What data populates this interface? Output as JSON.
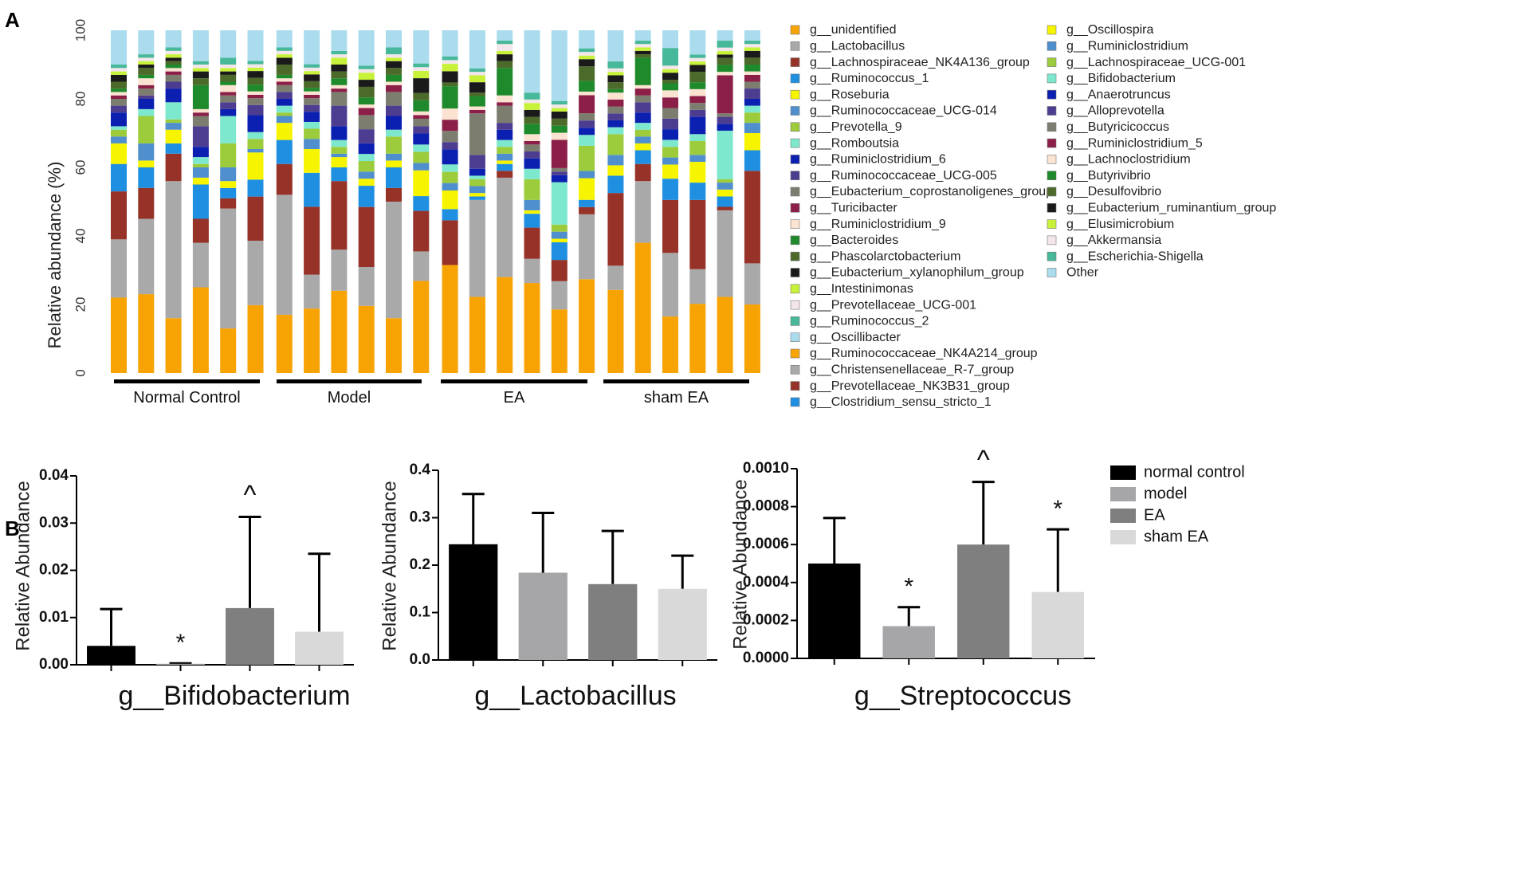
{
  "panel_a": {
    "label": "A",
    "ylabel": "Relative abundance (%)",
    "yticks": [
      "0",
      "20",
      "40",
      "60",
      "80",
      "100"
    ],
    "groups": [
      "Normal Control",
      "Model",
      "EA",
      "sham EA"
    ],
    "bars_per_group": 6,
    "genera": [
      {
        "name": "g__Ruminococcaceae_NK4A214_group",
        "color": "#f8a304"
      },
      {
        "name": "g__Christensenellaceae_R-7_group",
        "color": "#a9a9a9"
      },
      {
        "name": "g__Prevotellaceae_NK3B31_group",
        "color": "#963227"
      },
      {
        "name": "g__Clostridium_sensu_stricto_1",
        "color": "#1f8fe2"
      },
      {
        "name": "g__Oscillospira",
        "color": "#f7f400"
      },
      {
        "name": "g__Ruminiclostridium",
        "color": "#4f8fce"
      },
      {
        "name": "g__Lachnospiraceae_UCG-001",
        "color": "#9ccb3b"
      },
      {
        "name": "g__Bifidobacterium",
        "color": "#7de8cd"
      },
      {
        "name": "g__Anaerotruncus",
        "color": "#0b1fb0"
      },
      {
        "name": "g__Alloprevotella",
        "color": "#4d3d90"
      },
      {
        "name": "g__Butyricicoccus",
        "color": "#7d7d6f"
      },
      {
        "name": "g__Ruminiclostridium_5",
        "color": "#8c1f48"
      },
      {
        "name": "g__Lachnoclostridium",
        "color": "#fbe3d1"
      },
      {
        "name": "g__Butyrivibrio",
        "color": "#1f8a2b"
      },
      {
        "name": "g__Desulfovibrio",
        "color": "#4c6a2a"
      },
      {
        "name": "g__Eubacterium_ruminantium_group",
        "color": "#1a1a1a"
      },
      {
        "name": "g__Elusimicrobium",
        "color": "#c8f23a"
      },
      {
        "name": "g__Akkermansia",
        "color": "#f3e6ea"
      },
      {
        "name": "g__Escherichia-Shigella",
        "color": "#48b89a"
      },
      {
        "name": "Other",
        "color": "#aadcee"
      }
    ],
    "legend_col1": [
      {
        "name": "g__unidentified",
        "color": "#f8a304"
      },
      {
        "name": "g__Lactobacillus",
        "color": "#a9a9a9"
      },
      {
        "name": "g__Lachnospiraceae_NK4A136_group",
        "color": "#963227"
      },
      {
        "name": "g__Ruminococcus_1",
        "color": "#1f8fe2"
      },
      {
        "name": "g__Roseburia",
        "color": "#f7f400"
      },
      {
        "name": "g__Ruminococcaceae_UCG-014",
        "color": "#4f8fce"
      },
      {
        "name": "g__Prevotella_9",
        "color": "#9ccb3b"
      },
      {
        "name": "g__Romboutsia",
        "color": "#7de8cd"
      },
      {
        "name": "g__Ruminiclostridium_6",
        "color": "#0b1fb0"
      },
      {
        "name": "g__Ruminococcaceae_UCG-005",
        "color": "#4d3d90"
      },
      {
        "name": "g__Eubacterium_coprostanoligenes_group",
        "color": "#7d7d6f"
      },
      {
        "name": "g__Turicibacter",
        "color": "#8c1f48"
      },
      {
        "name": "g__Ruminiclostridium_9",
        "color": "#fbe3d1"
      },
      {
        "name": "g__Bacteroides",
        "color": "#1f8a2b"
      },
      {
        "name": "g__Phascolarctobacterium",
        "color": "#4c6a2a"
      },
      {
        "name": "g__Eubacterium_xylanophilum_group",
        "color": "#1a1a1a"
      },
      {
        "name": "g__Intestinimonas",
        "color": "#c8f23a"
      },
      {
        "name": "g__Prevotellaceae_UCG-001",
        "color": "#f3e6ea"
      },
      {
        "name": "g__Ruminococcus_2",
        "color": "#48b89a"
      },
      {
        "name": "g__Oscillibacter",
        "color": "#aadcee"
      },
      {
        "name": "g__Ruminococcaceae_NK4A214_group",
        "color": "#f8a304"
      },
      {
        "name": "g__Christensenellaceae_R-7_group",
        "color": "#a9a9a9"
      },
      {
        "name": "g__Prevotellaceae_NK3B31_group",
        "color": "#963227"
      },
      {
        "name": "g__Clostridium_sensu_stricto_1",
        "color": "#1f8fe2"
      }
    ],
    "legend_col2": [
      {
        "name": "g__Oscillospira",
        "color": "#f7f400"
      },
      {
        "name": "g__Ruminiclostridium",
        "color": "#4f8fce"
      },
      {
        "name": "g__Lachnospiraceae_UCG-001",
        "color": "#9ccb3b"
      },
      {
        "name": "g__Bifidobacterium",
        "color": "#7de8cd"
      },
      {
        "name": "g__Anaerotruncus",
        "color": "#0b1fb0"
      },
      {
        "name": "g__Alloprevotella",
        "color": "#4d3d90"
      },
      {
        "name": "g__Butyricicoccus",
        "color": "#7d7d6f"
      },
      {
        "name": "g__Ruminiclostridium_5",
        "color": "#8c1f48"
      },
      {
        "name": "g__Lachnoclostridium",
        "color": "#fbe3d1"
      },
      {
        "name": "g__Butyrivibrio",
        "color": "#1f8a2b"
      },
      {
        "name": "g__Desulfovibrio",
        "color": "#4c6a2a"
      },
      {
        "name": "g__Eubacterium_ruminantium_group",
        "color": "#1a1a1a"
      },
      {
        "name": "g__Elusimicrobium",
        "color": "#c8f23a"
      },
      {
        "name": "g__Akkermansia",
        "color": "#f3e6ea"
      },
      {
        "name": "g__Escherichia-Shigella",
        "color": "#48b89a"
      },
      {
        "name": "Other",
        "color": "#aadcee"
      }
    ]
  },
  "panel_b": {
    "label": "B",
    "legend": [
      {
        "name": "normal control",
        "color": "#000000"
      },
      {
        "name": "model",
        "color": "#a6a6a9"
      },
      {
        "name": "EA",
        "color": "#7f7f7f"
      },
      {
        "name": "sham EA",
        "color": "#d9d9d9"
      }
    ]
  },
  "chart_data": [
    {
      "type": "bar",
      "stacked": true,
      "title": "",
      "ylabel": "Relative abundance (%)",
      "ylim": [
        0,
        100
      ],
      "categories": [
        "Normal Control",
        "Model",
        "EA",
        "sham EA"
      ],
      "note": "segment values listed bottom to top; dominant genera read from plot, small ones estimated",
      "samples": [
        {
          "group": "Normal Control",
          "segments": [
            22,
            17,
            14,
            8,
            6,
            2,
            2,
            1,
            4,
            2,
            2,
            1,
            1,
            1,
            2,
            2,
            1,
            1,
            1,
            10
          ]
        },
        {
          "group": "Normal Control",
          "segments": [
            23,
            22,
            9,
            6,
            2,
            5,
            8,
            2,
            3,
            1,
            2,
            1,
            2,
            1,
            2,
            1,
            1,
            1,
            1,
            7
          ]
        },
        {
          "group": "Normal Control",
          "segments": [
            16,
            40,
            8,
            3,
            4,
            2,
            1,
            5,
            4,
            2,
            2,
            1,
            1,
            1,
            1,
            1,
            1,
            1,
            1,
            5
          ]
        },
        {
          "group": "Normal Control",
          "segments": [
            25,
            13,
            7,
            10,
            2,
            3,
            1,
            2,
            3,
            6,
            3,
            1,
            1,
            7,
            2,
            2,
            1,
            1,
            1,
            9
          ]
        },
        {
          "group": "Normal Control",
          "segments": [
            13,
            35,
            3,
            3,
            2,
            4,
            7,
            8,
            2,
            2,
            2,
            1,
            2,
            1,
            2,
            1,
            1,
            1,
            2,
            8
          ]
        },
        {
          "group": "Normal Control",
          "segments": [
            20,
            19,
            13,
            5,
            8,
            1,
            3,
            2,
            5,
            3,
            2,
            1,
            1,
            2,
            2,
            2,
            1,
            1,
            1,
            9
          ]
        },
        {
          "group": "Model",
          "segments": [
            17,
            35,
            9,
            7,
            5,
            2,
            1,
            2,
            2,
            2,
            2,
            1,
            1,
            1,
            3,
            2,
            1,
            1,
            1,
            5
          ]
        },
        {
          "group": "Model",
          "segments": [
            19,
            10,
            20,
            10,
            7,
            3,
            3,
            2,
            3,
            2,
            2,
            1,
            1,
            1,
            2,
            2,
            1,
            1,
            1,
            10
          ]
        },
        {
          "group": "Model",
          "segments": [
            24,
            12,
            20,
            4,
            3,
            1,
            2,
            2,
            4,
            6,
            4,
            1,
            1,
            2,
            2,
            2,
            2,
            1,
            1,
            6
          ]
        },
        {
          "group": "Model",
          "segments": [
            19,
            11,
            17,
            6,
            2,
            2,
            3,
            2,
            3,
            4,
            4,
            2,
            1,
            2,
            3,
            2,
            2,
            1,
            1,
            10
          ]
        },
        {
          "group": "Model",
          "segments": [
            16,
            34,
            4,
            6,
            2,
            2,
            5,
            2,
            4,
            3,
            4,
            2,
            1,
            2,
            2,
            2,
            1,
            1,
            2,
            5
          ]
        },
        {
          "group": "Model",
          "segments": [
            25,
            8,
            11,
            4,
            7,
            2,
            3,
            2,
            3,
            2,
            2,
            1,
            1,
            3,
            2,
            4,
            2,
            1,
            1,
            9
          ]
        },
        {
          "group": "EA",
          "segments": [
            29,
            0,
            12,
            3,
            5,
            2,
            3,
            2,
            4,
            2,
            3,
            3,
            3,
            6,
            1,
            3,
            2,
            1,
            1,
            7
          ]
        },
        {
          "group": "EA",
          "segments": [
            22,
            28,
            0,
            1,
            1,
            2,
            2,
            1,
            2,
            4,
            12,
            1,
            1,
            3,
            1,
            3,
            2,
            1,
            1,
            11
          ]
        },
        {
          "group": "EA",
          "segments": [
            28,
            29,
            2,
            2,
            1,
            2,
            2,
            2,
            3,
            2,
            5,
            1,
            2,
            8,
            2,
            2,
            1,
            2,
            1,
            3
          ]
        },
        {
          "group": "EA",
          "segments": [
            26,
            7,
            9,
            4,
            1,
            3,
            6,
            3,
            3,
            2,
            2,
            1,
            2,
            3,
            2,
            2,
            2,
            1,
            2,
            18
          ]
        },
        {
          "group": "EA",
          "segments": [
            18,
            8,
            6,
            5,
            1,
            2,
            2,
            12,
            2,
            1,
            1,
            8,
            2,
            2,
            2,
            2,
            1,
            1,
            1,
            20
          ]
        },
        {
          "group": "EA",
          "segments": [
            26,
            18,
            2,
            2,
            6,
            2,
            7,
            3,
            2,
            2,
            2,
            5,
            1,
            3,
            4,
            2,
            1,
            1,
            1,
            5
          ]
        },
        {
          "group": "sham EA",
          "segments": [
            24,
            7,
            21,
            5,
            3,
            3,
            6,
            2,
            2,
            2,
            2,
            2,
            2,
            1,
            2,
            2,
            1,
            1,
            2,
            9
          ]
        },
        {
          "group": "sham EA",
          "segments": [
            38,
            18,
            5,
            4,
            2,
            2,
            2,
            2,
            3,
            3,
            2,
            2,
            1,
            8,
            1,
            1,
            1,
            1,
            1,
            3
          ]
        },
        {
          "group": "sham EA",
          "segments": [
            16,
            18,
            15,
            6,
            4,
            2,
            3,
            2,
            3,
            3,
            3,
            3,
            2,
            2,
            1,
            2,
            1,
            1,
            5,
            5
          ]
        },
        {
          "group": "sham EA",
          "segments": [
            20,
            10,
            20,
            5,
            6,
            2,
            4,
            2,
            5,
            2,
            2,
            2,
            2,
            2,
            3,
            2,
            1,
            1,
            1,
            7
          ]
        },
        {
          "group": "sham EA",
          "segments": [
            22,
            25,
            1,
            3,
            2,
            2,
            1,
            14,
            2,
            2,
            1,
            11,
            1,
            2,
            2,
            1,
            1,
            1,
            2,
            3
          ]
        },
        {
          "group": "sham EA",
          "segments": [
            20,
            12,
            27,
            6,
            5,
            3,
            3,
            2,
            2,
            3,
            2,
            2,
            1,
            2,
            2,
            2,
            1,
            1,
            1,
            3
          ]
        }
      ]
    },
    {
      "type": "bar",
      "title": "g__Bifidobacterium",
      "ylabel": "Relative Abundance",
      "ylim": [
        0,
        0.04
      ],
      "yticks": [
        "0.00",
        "0.01",
        "0.02",
        "0.03",
        "0.04"
      ],
      "categories": [
        "normal control",
        "model",
        "EA",
        "sham EA"
      ],
      "values": [
        0.004,
        0.0002,
        0.012,
        0.007
      ],
      "errors": [
        0.0078,
        0.0001,
        0.0193,
        0.0165
      ],
      "annotations": [
        "",
        "*",
        "^",
        ""
      ]
    },
    {
      "type": "bar",
      "title": "g__Lactobacillus",
      "ylabel": "Relative Abundance",
      "ylim": [
        0,
        0.4
      ],
      "yticks": [
        "0.0",
        "0.1",
        "0.2",
        "0.3",
        "0.4"
      ],
      "categories": [
        "normal control",
        "model",
        "EA",
        "sham EA"
      ],
      "values": [
        0.244,
        0.184,
        0.16,
        0.15
      ],
      "errors": [
        0.106,
        0.126,
        0.112,
        0.07
      ],
      "annotations": [
        "",
        "",
        "",
        ""
      ]
    },
    {
      "type": "bar",
      "title": "g__Streptococcus",
      "ylabel": "Relative Abundance",
      "ylim": [
        0,
        0.001
      ],
      "yticks": [
        "0.0000",
        "0.0002",
        "0.0004",
        "0.0006",
        "0.0008",
        "0.0010"
      ],
      "categories": [
        "normal control",
        "model",
        "EA",
        "sham EA"
      ],
      "values": [
        0.0005,
        0.00017,
        0.0006,
        0.00035
      ],
      "errors": [
        0.00024,
        0.0001,
        0.00033,
        0.00033
      ],
      "annotations": [
        "",
        "*",
        "^",
        "*"
      ]
    }
  ]
}
